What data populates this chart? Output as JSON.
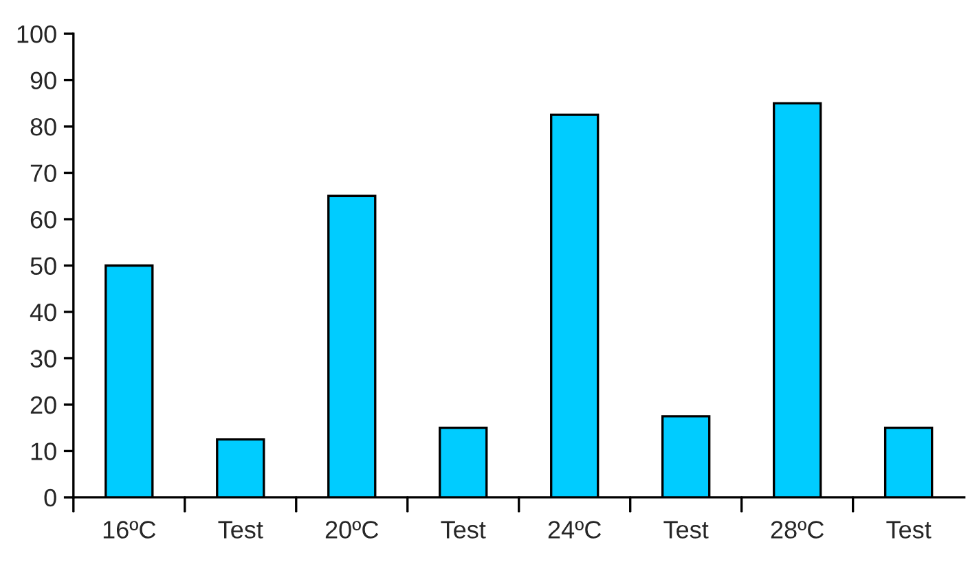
{
  "chart_data": {
    "type": "bar",
    "categories": [
      "16ºC",
      "Test",
      "20ºC",
      "Test",
      "24ºC",
      "Test",
      "28ºC",
      "Test"
    ],
    "values": [
      50,
      12.5,
      65,
      15,
      82.5,
      17.5,
      85,
      15
    ],
    "color": "#00ccff",
    "ylim": [
      0,
      100
    ],
    "yticks": [
      0,
      10,
      20,
      30,
      40,
      50,
      60,
      70,
      80,
      90,
      100
    ],
    "grid": false
  }
}
